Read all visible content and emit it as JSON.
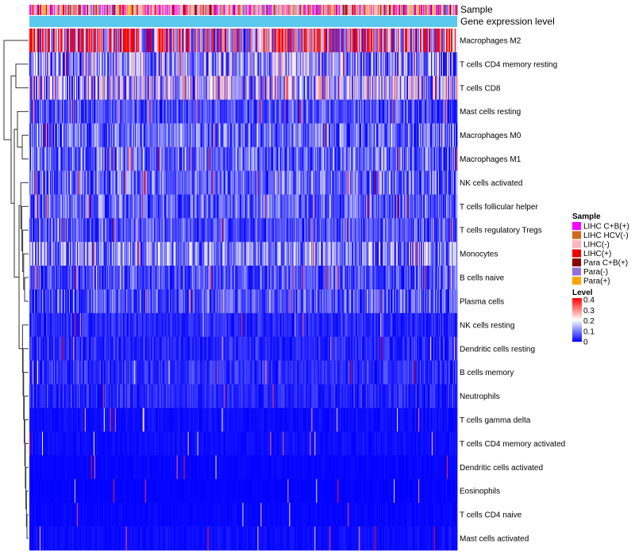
{
  "chart_data": {
    "type": "heatmap",
    "title": "",
    "annotation_tracks": [
      {
        "name": "Sample",
        "label": "Sample"
      },
      {
        "name": "Gene expression level",
        "label": "Gene expression level",
        "color": "#5bc8ee"
      }
    ],
    "rows": [
      {
        "label": "Macrophages M2",
        "mean": 0.26
      },
      {
        "label": "T cells CD4 memory resting",
        "mean": 0.12
      },
      {
        "label": "T cells CD8",
        "mean": 0.14
      },
      {
        "label": "Mast cells resting",
        "mean": 0.06
      },
      {
        "label": "Macrophages M0",
        "mean": 0.08
      },
      {
        "label": "Macrophages M1",
        "mean": 0.08
      },
      {
        "label": "NK cells activated",
        "mean": 0.075
      },
      {
        "label": "T cells follicular helper",
        "mean": 0.07
      },
      {
        "label": "T cells regulatory  Tregs",
        "mean": 0.06
      },
      {
        "label": "Monocytes",
        "mean": 0.1
      },
      {
        "label": "B cells naive",
        "mean": 0.06
      },
      {
        "label": "Plasma cells",
        "mean": 0.065
      },
      {
        "label": "NK cells resting",
        "mean": 0.03
      },
      {
        "label": "Dendritic cells resting",
        "mean": 0.03
      },
      {
        "label": "B cells memory",
        "mean": 0.035
      },
      {
        "label": "Neutrophils",
        "mean": 0.03
      },
      {
        "label": "T cells gamma delta",
        "mean": 0.01
      },
      {
        "label": "T cells CD4 memory activated",
        "mean": 0.01
      },
      {
        "label": "Dendritic cells activated",
        "mean": 0.005
      },
      {
        "label": "Eosinophils",
        "mean": 0.003
      },
      {
        "label": "T cells CD4 naive",
        "mean": 0.005
      },
      {
        "label": "Mast cells activated",
        "mean": 0.01
      }
    ],
    "sample_legend": {
      "title": "Sample",
      "items": [
        {
          "label": "LIHC C+B(+)",
          "color": "#ff00ff"
        },
        {
          "label": "LIHC HCV(-)",
          "color": "#d2691e"
        },
        {
          "label": "LIHC(-)",
          "color": "#ffb6c1"
        },
        {
          "label": "LIHC(+)",
          "color": "#ee0000"
        },
        {
          "label": "Para C+B(+)",
          "color": "#8b0000"
        },
        {
          "label": "Para(-)",
          "color": "#9370db"
        },
        {
          "label": "Para(+)",
          "color": "#ffa500"
        }
      ],
      "mix_weights": [
        0.18,
        0.03,
        0.42,
        0.07,
        0.05,
        0.15,
        0.1
      ]
    },
    "level_legend": {
      "title": "Level",
      "ticks": [
        0.4,
        0.3,
        0.2,
        0.1,
        0
      ],
      "tick_labels": [
        "0.4",
        "0.3",
        "0.2",
        "0.1",
        "0"
      ],
      "range": [
        0,
        0.4
      ],
      "color_low": "#0000ff",
      "color_mid": "#ffffff",
      "color_high": "#ff0000",
      "midpoint": 0.2
    },
    "n_samples": 540,
    "dendrogram": "hierarchical clustering of rows (left)"
  }
}
